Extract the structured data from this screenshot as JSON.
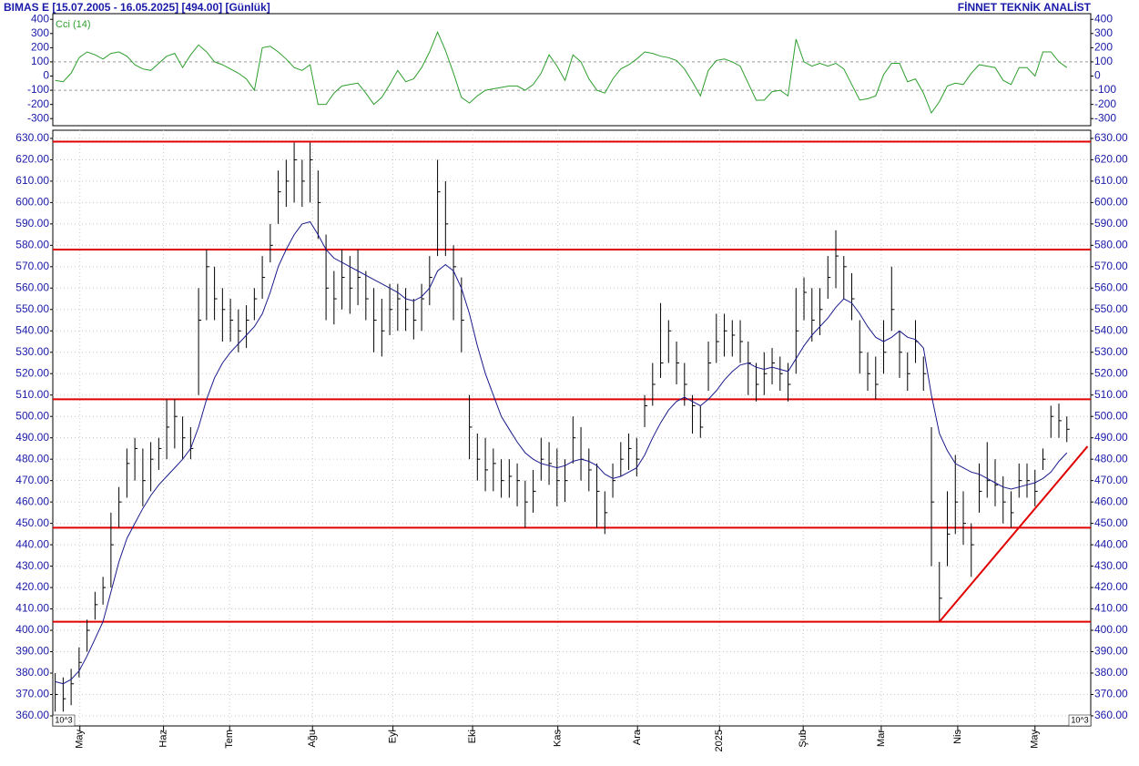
{
  "header": {
    "title": "BIMAS E  [15.07.2005 - 16.05.2025]  [494.00]  [Günlük]",
    "source": "FİNNET TEKNİK ANALİST"
  },
  "chart_data": [
    {
      "type": "line",
      "series": [
        {
          "name": "Cci (14)",
          "color": "#2e9e2e",
          "values": [
            -30,
            -40,
            20,
            130,
            170,
            150,
            120,
            160,
            170,
            140,
            80,
            50,
            40,
            90,
            140,
            160,
            60,
            150,
            220,
            170,
            100,
            80,
            50,
            20,
            -20,
            -100,
            200,
            210,
            170,
            120,
            60,
            40,
            80,
            -200,
            -200,
            -120,
            -70,
            -60,
            -50,
            -120,
            -200,
            -150,
            -60,
            40,
            -40,
            -20,
            60,
            170,
            310,
            180,
            20,
            -150,
            -190,
            -140,
            -100,
            -90,
            -80,
            -70,
            -70,
            -100,
            -60,
            20,
            150,
            70,
            -30,
            150,
            100,
            -20,
            -100,
            -120,
            -20,
            50,
            80,
            120,
            170,
            160,
            140,
            130,
            110,
            50,
            -40,
            -140,
            40,
            110,
            120,
            100,
            70,
            -50,
            -170,
            -170,
            -110,
            -100,
            -140,
            260,
            100,
            70,
            90,
            70,
            90,
            50,
            -60,
            -170,
            -160,
            -140,
            10,
            90,
            90,
            -40,
            -20,
            -120,
            -260,
            -180,
            -70,
            -50,
            -60,
            20,
            80,
            70,
            60,
            -30,
            -60,
            60,
            60,
            0,
            170,
            170,
            100,
            60
          ]
        }
      ],
      "xlim": [
        -0.3,
        130
      ],
      "ylim": [
        -350,
        440
      ],
      "yticks": [
        400,
        300,
        200,
        100,
        0,
        -100,
        -200,
        -300
      ],
      "reference_lines": [
        100,
        -100
      ]
    },
    {
      "type": "ohlc",
      "color": "#000000",
      "axis_multiplier": "10^3",
      "grid": true,
      "high": [
        380,
        378,
        382,
        392,
        405,
        418,
        425,
        455,
        467,
        485,
        490,
        485,
        488,
        490,
        508,
        508,
        500,
        495,
        560,
        578,
        570,
        560,
        555,
        550,
        552,
        560,
        575,
        590,
        615,
        620,
        628,
        620,
        628,
        615,
        585,
        568,
        578,
        575,
        578,
        568,
        560,
        555,
        562,
        562,
        560,
        555,
        562,
        575,
        620,
        610,
        580,
        565,
        510,
        492,
        490,
        485,
        480,
        480,
        478,
        470,
        475,
        490,
        488,
        485,
        480,
        500,
        495,
        485,
        478,
        465,
        478,
        488,
        492,
        490,
        510,
        525,
        553,
        545,
        535,
        525,
        510,
        505,
        535,
        548,
        548,
        545,
        545,
        535,
        525,
        530,
        532,
        528,
        525,
        560,
        565,
        560,
        560,
        575,
        587,
        575,
        567,
        545,
        530,
        528,
        545,
        570,
        540,
        530,
        545,
        528,
        495,
        432,
        465,
        482,
        465,
        450,
        478,
        488,
        480,
        472,
        465,
        478,
        478,
        475,
        485,
        505,
        506,
        500
      ],
      "low": [
        362,
        362,
        365,
        378,
        390,
        405,
        412,
        420,
        448,
        462,
        470,
        458,
        465,
        475,
        480,
        485,
        480,
        480,
        510,
        545,
        545,
        535,
        535,
        530,
        532,
        545,
        555,
        572,
        590,
        598,
        600,
        598,
        600,
        583,
        545,
        543,
        550,
        548,
        552,
        545,
        530,
        528,
        538,
        540,
        540,
        536,
        540,
        552,
        575,
        575,
        545,
        530,
        480,
        470,
        465,
        465,
        462,
        462,
        458,
        448,
        455,
        470,
        468,
        458,
        460,
        478,
        470,
        465,
        448,
        445,
        462,
        472,
        475,
        472,
        495,
        505,
        518,
        525,
        515,
        505,
        492,
        490,
        512,
        525,
        528,
        528,
        525,
        510,
        507,
        510,
        515,
        512,
        507,
        520,
        545,
        535,
        538,
        555,
        560,
        555,
        545,
        520,
        512,
        508,
        520,
        540,
        518,
        512,
        525,
        512,
        430,
        404,
        430,
        445,
        440,
        425,
        455,
        462,
        458,
        450,
        448,
        462,
        462,
        458,
        475,
        490,
        490,
        488
      ],
      "close": [
        370,
        368,
        375,
        385,
        400,
        412,
        420,
        440,
        460,
        478,
        485,
        470,
        480,
        485,
        495,
        500,
        490,
        485,
        545,
        570,
        555,
        550,
        545,
        540,
        545,
        555,
        565,
        580,
        605,
        610,
        620,
        610,
        620,
        600,
        560,
        555,
        565,
        560,
        565,
        555,
        545,
        540,
        550,
        555,
        550,
        545,
        555,
        565,
        605,
        590,
        570,
        545,
        495,
        480,
        475,
        478,
        470,
        472,
        470,
        460,
        465,
        480,
        478,
        470,
        470,
        490,
        480,
        475,
        465,
        455,
        470,
        480,
        485,
        480,
        505,
        515,
        525,
        540,
        525,
        515,
        505,
        495,
        525,
        535,
        540,
        538,
        535,
        525,
        515,
        520,
        525,
        520,
        515,
        540,
        558,
        545,
        550,
        565,
        575,
        570,
        555,
        530,
        520,
        515,
        530,
        550,
        530,
        520,
        535,
        520,
        460,
        415,
        445,
        460,
        450,
        440,
        465,
        470,
        468,
        460,
        455,
        470,
        470,
        465,
        480,
        500,
        498,
        494
      ],
      "ma": {
        "color": "#1a1a8c",
        "values": [
          376,
          375,
          377,
          381,
          388,
          396,
          404,
          418,
          432,
          443,
          450,
          457,
          463,
          468,
          472,
          476,
          480,
          485,
          495,
          508,
          518,
          525,
          530,
          534,
          538,
          542,
          548,
          558,
          570,
          578,
          585,
          590,
          591,
          585,
          578,
          574,
          572,
          570,
          568,
          566,
          564,
          562,
          560,
          558,
          555,
          554,
          556,
          560,
          568,
          571,
          568,
          560,
          548,
          533,
          520,
          510,
          500,
          494,
          488,
          483,
          480,
          478,
          477,
          476,
          477,
          479,
          480,
          479,
          477,
          473,
          471,
          472,
          474,
          476,
          482,
          490,
          497,
          503,
          507,
          509,
          507,
          505,
          508,
          512,
          517,
          521,
          524,
          525,
          523,
          522,
          523,
          522,
          521,
          527,
          533,
          538,
          542,
          546,
          551,
          555,
          553,
          548,
          542,
          537,
          535,
          537,
          540,
          537,
          536,
          532,
          510,
          492,
          484,
          478,
          476,
          474,
          473,
          471,
          469,
          467,
          466,
          467,
          468,
          469,
          471,
          474,
          479,
          483
        ]
      },
      "hlines": {
        "color": "#e00000",
        "values": [
          628.5,
          578,
          508,
          448,
          404
        ]
      },
      "trendline": {
        "color": "#e00000",
        "x": [
          111,
          129.6
        ],
        "y": [
          404,
          486
        ]
      },
      "xlim": [
        -0.3,
        130
      ],
      "ylim": [
        355.3,
        633.8
      ],
      "xticks": [
        {
          "value": 3.1,
          "label": "May"
        },
        {
          "value": 13.6,
          "label": "Haz"
        },
        {
          "value": 21.9,
          "label": "Tem"
        },
        {
          "value": 32.3,
          "label": "Ağu"
        },
        {
          "value": 42.4,
          "label": "Eyl"
        },
        {
          "value": 52.4,
          "label": "Eki"
        },
        {
          "value": 63.1,
          "label": "Kas"
        },
        {
          "value": 73.1,
          "label": "Ara"
        },
        {
          "value": 83.4,
          "label": "2025"
        },
        {
          "value": 93.9,
          "label": "Şub"
        },
        {
          "value": 103.7,
          "label": "Mar"
        },
        {
          "value": 113.3,
          "label": "Nis"
        },
        {
          "value": 123.0,
          "label": "May"
        }
      ],
      "yticks": [
        {
          "value": 630,
          "label": "630.00"
        },
        {
          "value": 620,
          "label": "620.00"
        },
        {
          "value": 610,
          "label": "610.00"
        },
        {
          "value": 600,
          "label": "600.00"
        },
        {
          "value": 590,
          "label": "590.00"
        },
        {
          "value": 580,
          "label": "580.00"
        },
        {
          "value": 570,
          "label": "570.00"
        },
        {
          "value": 560,
          "label": "560.00"
        },
        {
          "value": 550,
          "label": "550.00"
        },
        {
          "value": 540,
          "label": "540.00"
        },
        {
          "value": 530,
          "label": "530.00"
        },
        {
          "value": 520,
          "label": "520.00"
        },
        {
          "value": 510,
          "label": "510.00"
        },
        {
          "value": 500,
          "label": "500.00"
        },
        {
          "value": 490,
          "label": "490.00"
        },
        {
          "value": 480,
          "label": "480.00"
        },
        {
          "value": 470,
          "label": "470.00"
        },
        {
          "value": 460,
          "label": "460.00"
        },
        {
          "value": 450,
          "label": "450.00"
        },
        {
          "value": 440,
          "label": "440.00"
        },
        {
          "value": 430,
          "label": "430.00"
        },
        {
          "value": 420,
          "label": "420.00"
        },
        {
          "value": 410,
          "label": "410.00"
        },
        {
          "value": 400,
          "label": "400.00"
        },
        {
          "value": 390,
          "label": "390.00"
        },
        {
          "value": 380,
          "label": "380.00"
        },
        {
          "value": 370,
          "label": "370.00"
        },
        {
          "value": 360,
          "label": "360.00"
        }
      ]
    }
  ]
}
